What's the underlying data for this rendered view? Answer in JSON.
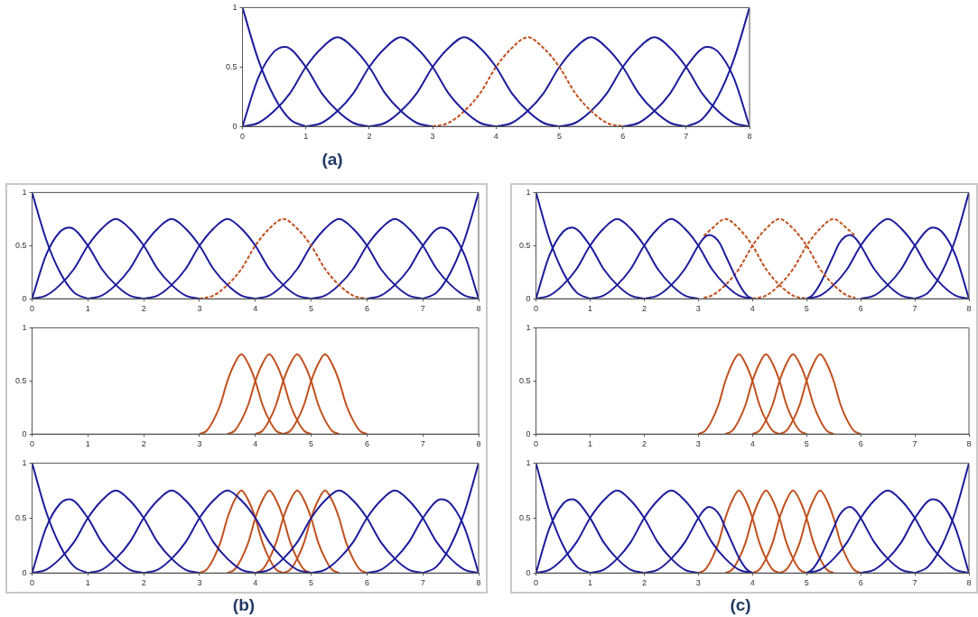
{
  "chart_data": [
    {
      "type": "line",
      "title": "(a)",
      "xlim": [
        0,
        8
      ],
      "ylim": [
        0,
        1
      ],
      "xticks": [
        0,
        1,
        2,
        3,
        4,
        5,
        6,
        7,
        8
      ],
      "yticks": [
        0,
        0.5,
        1
      ],
      "grid": false,
      "legend": false,
      "marker": "none",
      "series": [
        {
          "color": "#1c1c9c",
          "x": [
            0,
            0.25,
            0.5,
            0.75,
            1
          ],
          "values": [
            1,
            0.56,
            0.25,
            0.06,
            0
          ]
        },
        {
          "color": "#1c1c9c",
          "x": [
            0,
            0.25,
            0.5,
            0.67,
            1,
            1.25,
            1.5,
            1.75,
            2
          ],
          "values": [
            0,
            0.41,
            0.63,
            0.67,
            0.5,
            0.28,
            0.13,
            0.03,
            0
          ]
        },
        {
          "color": "#1c1c9c",
          "x": [
            0,
            0.25,
            0.5,
            0.75,
            1,
            1.25,
            1.5,
            1.75,
            2,
            2.25,
            2.5,
            2.75,
            3
          ],
          "values": [
            0,
            0.03,
            0.13,
            0.28,
            0.5,
            0.66,
            0.75,
            0.66,
            0.5,
            0.28,
            0.13,
            0.03,
            0
          ]
        },
        {
          "color": "#1c1c9c",
          "x": [
            1,
            1.25,
            1.5,
            1.75,
            2,
            2.25,
            2.5,
            2.75,
            3,
            3.25,
            3.5,
            3.75,
            4
          ],
          "values": [
            0,
            0.03,
            0.13,
            0.28,
            0.5,
            0.66,
            0.75,
            0.66,
            0.5,
            0.28,
            0.13,
            0.03,
            0
          ]
        },
        {
          "color": "#1c1c9c",
          "x": [
            2,
            2.25,
            2.5,
            2.75,
            3,
            3.25,
            3.5,
            3.75,
            4,
            4.25,
            4.5,
            4.75,
            5
          ],
          "values": [
            0,
            0.03,
            0.13,
            0.28,
            0.5,
            0.66,
            0.75,
            0.66,
            0.5,
            0.28,
            0.13,
            0.03,
            0
          ]
        },
        {
          "color": "#c0501e",
          "line_style": "dashed",
          "x": [
            3,
            3.25,
            3.5,
            3.75,
            4,
            4.25,
            4.5,
            4.75,
            5,
            5.25,
            5.5,
            5.75,
            6
          ],
          "values": [
            0,
            0.03,
            0.13,
            0.28,
            0.5,
            0.66,
            0.75,
            0.66,
            0.5,
            0.28,
            0.13,
            0.03,
            0
          ]
        },
        {
          "color": "#1c1c9c",
          "x": [
            4,
            4.25,
            4.5,
            4.75,
            5,
            5.25,
            5.5,
            5.75,
            6,
            6.25,
            6.5,
            6.75,
            7
          ],
          "values": [
            0,
            0.03,
            0.13,
            0.28,
            0.5,
            0.66,
            0.75,
            0.66,
            0.5,
            0.28,
            0.13,
            0.03,
            0
          ]
        },
        {
          "color": "#1c1c9c",
          "x": [
            5,
            5.25,
            5.5,
            5.75,
            6,
            6.25,
            6.5,
            6.75,
            7,
            7.25,
            7.5,
            7.75,
            8
          ],
          "values": [
            0,
            0.03,
            0.13,
            0.28,
            0.5,
            0.66,
            0.75,
            0.66,
            0.5,
            0.28,
            0.13,
            0.03,
            0
          ]
        },
        {
          "color": "#1c1c9c",
          "x": [
            6,
            6.25,
            6.5,
            6.75,
            7,
            7.33,
            7.5,
            7.75,
            8
          ],
          "values": [
            0,
            0.03,
            0.13,
            0.28,
            0.5,
            0.67,
            0.63,
            0.41,
            0
          ]
        },
        {
          "color": "#1c1c9c",
          "x": [
            7,
            7.25,
            7.5,
            7.75,
            8
          ],
          "values": [
            0,
            0.06,
            0.25,
            0.56,
            1
          ]
        }
      ]
    },
    {
      "type": "line",
      "xlim": [
        0,
        8
      ],
      "ylim": [
        0,
        1
      ],
      "xticks": [
        0,
        1,
        2,
        3,
        4,
        5,
        6,
        7,
        8
      ],
      "yticks": [
        0,
        0.5,
        1
      ],
      "grid": false,
      "legend": false,
      "marker": "none",
      "series": [
        {
          "color": "#1c1c9c",
          "x": [
            0,
            0.25,
            0.5,
            0.75,
            1
          ],
          "values": [
            1,
            0.56,
            0.25,
            0.06,
            0
          ]
        },
        {
          "color": "#1c1c9c",
          "x": [
            0,
            0.25,
            0.5,
            0.67,
            1,
            1.25,
            1.5,
            1.75,
            2
          ],
          "values": [
            0,
            0.41,
            0.63,
            0.67,
            0.5,
            0.28,
            0.13,
            0.03,
            0
          ]
        },
        {
          "color": "#1c1c9c",
          "x": [
            0,
            0.25,
            0.5,
            0.75,
            1,
            1.25,
            1.5,
            1.75,
            2,
            2.25,
            2.5,
            2.75,
            3
          ],
          "values": [
            0,
            0.03,
            0.13,
            0.28,
            0.5,
            0.66,
            0.75,
            0.66,
            0.5,
            0.28,
            0.13,
            0.03,
            0
          ]
        },
        {
          "color": "#1c1c9c",
          "x": [
            1,
            1.25,
            1.5,
            1.75,
            2,
            2.25,
            2.5,
            2.75,
            3,
            3.25,
            3.5,
            3.75,
            4
          ],
          "values": [
            0,
            0.03,
            0.13,
            0.28,
            0.5,
            0.66,
            0.75,
            0.66,
            0.5,
            0.28,
            0.13,
            0.03,
            0
          ]
        },
        {
          "color": "#1c1c9c",
          "x": [
            2,
            2.25,
            2.5,
            2.75,
            3,
            3.25,
            3.5,
            3.75,
            4,
            4.25,
            4.5,
            4.75,
            5
          ],
          "values": [
            0,
            0.03,
            0.13,
            0.28,
            0.5,
            0.66,
            0.75,
            0.66,
            0.5,
            0.28,
            0.13,
            0.03,
            0
          ]
        },
        {
          "color": "#c0501e",
          "line_style": "dashed",
          "x": [
            3,
            3.25,
            3.5,
            3.75,
            4,
            4.25,
            4.5,
            4.75,
            5,
            5.25,
            5.5,
            5.75,
            6
          ],
          "values": [
            0,
            0.03,
            0.13,
            0.28,
            0.5,
            0.66,
            0.75,
            0.66,
            0.5,
            0.28,
            0.13,
            0.03,
            0
          ]
        },
        {
          "color": "#1c1c9c",
          "x": [
            4,
            4.25,
            4.5,
            4.75,
            5,
            5.25,
            5.5,
            5.75,
            6,
            6.25,
            6.5,
            6.75,
            7
          ],
          "values": [
            0,
            0.03,
            0.13,
            0.28,
            0.5,
            0.66,
            0.75,
            0.66,
            0.5,
            0.28,
            0.13,
            0.03,
            0
          ]
        },
        {
          "color": "#1c1c9c",
          "x": [
            5,
            5.25,
            5.5,
            5.75,
            6,
            6.25,
            6.5,
            6.75,
            7,
            7.25,
            7.5,
            7.75,
            8
          ],
          "values": [
            0,
            0.03,
            0.13,
            0.28,
            0.5,
            0.66,
            0.75,
            0.66,
            0.5,
            0.28,
            0.13,
            0.03,
            0
          ]
        },
        {
          "color": "#1c1c9c",
          "x": [
            6,
            6.25,
            6.5,
            6.75,
            7,
            7.33,
            7.5,
            7.75,
            8
          ],
          "values": [
            0,
            0.03,
            0.13,
            0.28,
            0.5,
            0.67,
            0.63,
            0.41,
            0
          ]
        },
        {
          "color": "#1c1c9c",
          "x": [
            7,
            7.25,
            7.5,
            7.75,
            8
          ],
          "values": [
            0,
            0.06,
            0.25,
            0.56,
            1
          ]
        }
      ]
    },
    {
      "type": "line",
      "xlim": [
        0,
        8
      ],
      "ylim": [
        0,
        1
      ],
      "xticks": [
        0,
        1,
        2,
        3,
        4,
        5,
        6,
        7,
        8
      ],
      "yticks": [
        0,
        0.5,
        1
      ],
      "grid": false,
      "legend": false,
      "marker": "none",
      "series": [
        {
          "color": "#c0501e",
          "x": [
            3,
            3.125,
            3.25,
            3.375,
            3.5,
            3.625,
            3.75,
            3.875,
            4,
            4.125,
            4.25,
            4.375,
            4.5
          ],
          "values": [
            0,
            0.03,
            0.13,
            0.28,
            0.5,
            0.66,
            0.75,
            0.66,
            0.5,
            0.28,
            0.13,
            0.03,
            0
          ]
        },
        {
          "color": "#c0501e",
          "x": [
            3.5,
            3.625,
            3.75,
            3.875,
            4,
            4.125,
            4.25,
            4.375,
            4.5,
            4.625,
            4.75,
            4.875,
            5
          ],
          "values": [
            0,
            0.03,
            0.13,
            0.28,
            0.5,
            0.66,
            0.75,
            0.66,
            0.5,
            0.28,
            0.13,
            0.03,
            0
          ]
        },
        {
          "color": "#c0501e",
          "x": [
            4,
            4.125,
            4.25,
            4.375,
            4.5,
            4.625,
            4.75,
            4.875,
            5,
            5.125,
            5.25,
            5.375,
            5.5
          ],
          "values": [
            0,
            0.03,
            0.13,
            0.28,
            0.5,
            0.66,
            0.75,
            0.66,
            0.5,
            0.28,
            0.13,
            0.03,
            0
          ]
        },
        {
          "color": "#c0501e",
          "x": [
            4.5,
            4.625,
            4.75,
            4.875,
            5,
            5.125,
            5.25,
            5.375,
            5.5,
            5.625,
            5.75,
            5.875,
            6
          ],
          "values": [
            0,
            0.03,
            0.13,
            0.28,
            0.5,
            0.66,
            0.75,
            0.66,
            0.5,
            0.28,
            0.13,
            0.03,
            0
          ]
        }
      ]
    },
    {
      "type": "line",
      "title": "(b)",
      "xlim": [
        0,
        8
      ],
      "ylim": [
        0,
        1
      ],
      "xticks": [
        0,
        1,
        2,
        3,
        4,
        5,
        6,
        7,
        8
      ],
      "yticks": [
        0,
        0.5,
        1
      ],
      "grid": false,
      "legend": false,
      "marker": "none",
      "series": [
        {
          "color": "#1c1c9c",
          "x": [
            0,
            0.25,
            0.5,
            0.75,
            1
          ],
          "values": [
            1,
            0.56,
            0.25,
            0.06,
            0
          ]
        },
        {
          "color": "#1c1c9c",
          "x": [
            0,
            0.25,
            0.5,
            0.67,
            1,
            1.25,
            1.5,
            1.75,
            2
          ],
          "values": [
            0,
            0.41,
            0.63,
            0.67,
            0.5,
            0.28,
            0.13,
            0.03,
            0
          ]
        },
        {
          "color": "#1c1c9c",
          "x": [
            0,
            0.25,
            0.5,
            0.75,
            1,
            1.25,
            1.5,
            1.75,
            2,
            2.25,
            2.5,
            2.75,
            3
          ],
          "values": [
            0,
            0.03,
            0.13,
            0.28,
            0.5,
            0.66,
            0.75,
            0.66,
            0.5,
            0.28,
            0.13,
            0.03,
            0
          ]
        },
        {
          "color": "#1c1c9c",
          "x": [
            1,
            1.25,
            1.5,
            1.75,
            2,
            2.25,
            2.5,
            2.75,
            3,
            3.25,
            3.5,
            3.75,
            4
          ],
          "values": [
            0,
            0.03,
            0.13,
            0.28,
            0.5,
            0.66,
            0.75,
            0.66,
            0.5,
            0.28,
            0.13,
            0.03,
            0
          ]
        },
        {
          "color": "#1c1c9c",
          "x": [
            2,
            2.25,
            2.5,
            2.75,
            3,
            3.25,
            3.5,
            3.75,
            4,
            4.25,
            4.5,
            4.75,
            5
          ],
          "values": [
            0,
            0.03,
            0.13,
            0.28,
            0.5,
            0.66,
            0.75,
            0.66,
            0.5,
            0.28,
            0.13,
            0.03,
            0
          ]
        },
        {
          "color": "#1c1c9c",
          "x": [
            4,
            4.25,
            4.5,
            4.75,
            5,
            5.25,
            5.5,
            5.75,
            6,
            6.25,
            6.5,
            6.75,
            7
          ],
          "values": [
            0,
            0.03,
            0.13,
            0.28,
            0.5,
            0.66,
            0.75,
            0.66,
            0.5,
            0.28,
            0.13,
            0.03,
            0
          ]
        },
        {
          "color": "#1c1c9c",
          "x": [
            5,
            5.25,
            5.5,
            5.75,
            6,
            6.25,
            6.5,
            6.75,
            7,
            7.25,
            7.5,
            7.75,
            8
          ],
          "values": [
            0,
            0.03,
            0.13,
            0.28,
            0.5,
            0.66,
            0.75,
            0.66,
            0.5,
            0.28,
            0.13,
            0.03,
            0
          ]
        },
        {
          "color": "#1c1c9c",
          "x": [
            6,
            6.25,
            6.5,
            6.75,
            7,
            7.33,
            7.5,
            7.75,
            8
          ],
          "values": [
            0,
            0.03,
            0.13,
            0.28,
            0.5,
            0.67,
            0.63,
            0.41,
            0
          ]
        },
        {
          "color": "#1c1c9c",
          "x": [
            7,
            7.25,
            7.5,
            7.75,
            8
          ],
          "values": [
            0,
            0.06,
            0.25,
            0.56,
            1
          ]
        },
        {
          "color": "#c0501e",
          "x": [
            3,
            3.125,
            3.25,
            3.375,
            3.5,
            3.625,
            3.75,
            3.875,
            4,
            4.125,
            4.25,
            4.375,
            4.5
          ],
          "values": [
            0,
            0.03,
            0.13,
            0.28,
            0.5,
            0.66,
            0.75,
            0.66,
            0.5,
            0.28,
            0.13,
            0.03,
            0
          ]
        },
        {
          "color": "#c0501e",
          "x": [
            3.5,
            3.625,
            3.75,
            3.875,
            4,
            4.125,
            4.25,
            4.375,
            4.5,
            4.625,
            4.75,
            4.875,
            5
          ],
          "values": [
            0,
            0.03,
            0.13,
            0.28,
            0.5,
            0.66,
            0.75,
            0.66,
            0.5,
            0.28,
            0.13,
            0.03,
            0
          ]
        },
        {
          "color": "#c0501e",
          "x": [
            4,
            4.125,
            4.25,
            4.375,
            4.5,
            4.625,
            4.75,
            4.875,
            5,
            5.125,
            5.25,
            5.375,
            5.5
          ],
          "values": [
            0,
            0.03,
            0.13,
            0.28,
            0.5,
            0.66,
            0.75,
            0.66,
            0.5,
            0.28,
            0.13,
            0.03,
            0
          ]
        },
        {
          "color": "#c0501e",
          "x": [
            4.5,
            4.625,
            4.75,
            4.875,
            5,
            5.125,
            5.25,
            5.375,
            5.5,
            5.625,
            5.75,
            5.875,
            6
          ],
          "values": [
            0,
            0.03,
            0.13,
            0.28,
            0.5,
            0.66,
            0.75,
            0.66,
            0.5,
            0.28,
            0.13,
            0.03,
            0
          ]
        }
      ]
    },
    {
      "type": "line",
      "xlim": [
        0,
        8
      ],
      "ylim": [
        0,
        1
      ],
      "xticks": [
        0,
        1,
        2,
        3,
        4,
        5,
        6,
        7,
        8
      ],
      "yticks": [
        0,
        0.5,
        1
      ],
      "grid": false,
      "legend": false,
      "marker": "none",
      "series": [
        {
          "color": "#1c1c9c",
          "x": [
            0,
            0.25,
            0.5,
            0.75,
            1
          ],
          "values": [
            1,
            0.56,
            0.25,
            0.06,
            0
          ]
        },
        {
          "color": "#1c1c9c",
          "x": [
            0,
            0.25,
            0.5,
            0.67,
            1,
            1.25,
            1.5,
            1.75,
            2
          ],
          "values": [
            0,
            0.41,
            0.63,
            0.67,
            0.5,
            0.28,
            0.13,
            0.03,
            0
          ]
        },
        {
          "color": "#1c1c9c",
          "x": [
            0,
            0.25,
            0.5,
            0.75,
            1,
            1.25,
            1.5,
            1.75,
            2,
            2.25,
            2.5,
            2.75,
            3
          ],
          "values": [
            0,
            0.03,
            0.13,
            0.28,
            0.5,
            0.66,
            0.75,
            0.66,
            0.5,
            0.28,
            0.13,
            0.03,
            0
          ]
        },
        {
          "color": "#1c1c9c",
          "x": [
            1,
            1.25,
            1.5,
            1.75,
            2,
            2.25,
            2.5,
            2.75,
            3,
            3.25,
            3.5,
            3.75,
            4
          ],
          "values": [
            0,
            0.03,
            0.13,
            0.28,
            0.5,
            0.66,
            0.75,
            0.66,
            0.5,
            0.28,
            0.13,
            0.03,
            0
          ]
        },
        {
          "color": "#1c1c9c",
          "x": [
            2,
            2.25,
            2.5,
            2.75,
            3,
            3.1,
            3.2,
            3.3,
            3.4,
            3.5,
            3.6,
            3.75,
            3.9,
            4
          ],
          "values": [
            0,
            0.03,
            0.13,
            0.28,
            0.5,
            0.57,
            0.6,
            0.58,
            0.52,
            0.41,
            0.3,
            0.14,
            0.03,
            0
          ]
        },
        {
          "color": "#c0501e",
          "line_style": "dashed",
          "x": [
            3.1,
            3.25,
            3.5,
            3.75,
            4,
            4.25,
            4.5,
            4.75,
            5
          ],
          "values": [
            0.59,
            0.66,
            0.75,
            0.66,
            0.5,
            0.28,
            0.13,
            0.03,
            0
          ]
        },
        {
          "color": "#c0501e",
          "line_style": "dashed",
          "x": [
            3.1,
            3.25,
            3.5,
            3.75,
            4,
            4.25,
            4.5,
            4.75,
            5,
            5.25,
            5.5,
            5.75,
            5.9
          ],
          "values": [
            0.01,
            0.03,
            0.13,
            0.28,
            0.5,
            0.66,
            0.75,
            0.66,
            0.5,
            0.28,
            0.13,
            0.03,
            0.01
          ]
        },
        {
          "color": "#c0501e",
          "line_style": "dashed",
          "x": [
            4,
            4.25,
            4.5,
            4.75,
            5,
            5.25,
            5.5,
            5.75,
            5.9
          ],
          "values": [
            0,
            0.03,
            0.13,
            0.28,
            0.5,
            0.66,
            0.75,
            0.66,
            0.59
          ]
        },
        {
          "color": "#1c1c9c",
          "x": [
            5,
            5.1,
            5.25,
            5.4,
            5.5,
            5.6,
            5.7,
            5.8,
            5.9,
            6,
            6.25,
            6.5,
            6.75,
            7
          ],
          "values": [
            0,
            0.03,
            0.14,
            0.3,
            0.41,
            0.52,
            0.58,
            0.6,
            0.57,
            0.5,
            0.28,
            0.13,
            0.03,
            0
          ]
        },
        {
          "color": "#1c1c9c",
          "x": [
            5,
            5.25,
            5.5,
            5.75,
            6,
            6.25,
            6.5,
            6.75,
            7,
            7.25,
            7.5,
            7.75,
            8
          ],
          "values": [
            0,
            0.03,
            0.13,
            0.28,
            0.5,
            0.66,
            0.75,
            0.66,
            0.5,
            0.28,
            0.13,
            0.03,
            0
          ]
        },
        {
          "color": "#1c1c9c",
          "x": [
            6,
            6.25,
            6.5,
            6.75,
            7,
            7.33,
            7.5,
            7.75,
            8
          ],
          "values": [
            0,
            0.03,
            0.13,
            0.28,
            0.5,
            0.67,
            0.63,
            0.41,
            0
          ]
        },
        {
          "color": "#1c1c9c",
          "x": [
            7,
            7.25,
            7.5,
            7.75,
            8
          ],
          "values": [
            0,
            0.06,
            0.25,
            0.56,
            1
          ]
        }
      ]
    },
    {
      "type": "line",
      "xlim": [
        0,
        8
      ],
      "ylim": [
        0,
        1
      ],
      "xticks": [
        0,
        1,
        2,
        3,
        4,
        5,
        6,
        7,
        8
      ],
      "yticks": [
        0,
        0.5,
        1
      ],
      "grid": false,
      "legend": false,
      "marker": "none",
      "series": [
        {
          "color": "#c0501e",
          "x": [
            3,
            3.125,
            3.25,
            3.375,
            3.5,
            3.625,
            3.75,
            3.875,
            4,
            4.125,
            4.25,
            4.375,
            4.5
          ],
          "values": [
            0,
            0.03,
            0.13,
            0.28,
            0.5,
            0.66,
            0.75,
            0.66,
            0.5,
            0.28,
            0.13,
            0.03,
            0
          ]
        },
        {
          "color": "#c0501e",
          "x": [
            3.5,
            3.625,
            3.75,
            3.875,
            4,
            4.125,
            4.25,
            4.375,
            4.5,
            4.625,
            4.75,
            4.875,
            5
          ],
          "values": [
            0,
            0.03,
            0.13,
            0.28,
            0.5,
            0.66,
            0.75,
            0.66,
            0.5,
            0.28,
            0.13,
            0.03,
            0
          ]
        },
        {
          "color": "#c0501e",
          "x": [
            4,
            4.125,
            4.25,
            4.375,
            4.5,
            4.625,
            4.75,
            4.875,
            5,
            5.125,
            5.25,
            5.375,
            5.5
          ],
          "values": [
            0,
            0.03,
            0.13,
            0.28,
            0.5,
            0.66,
            0.75,
            0.66,
            0.5,
            0.28,
            0.13,
            0.03,
            0
          ]
        },
        {
          "color": "#c0501e",
          "x": [
            4.5,
            4.625,
            4.75,
            4.875,
            5,
            5.125,
            5.25,
            5.375,
            5.5,
            5.625,
            5.75,
            5.875,
            6
          ],
          "values": [
            0,
            0.03,
            0.13,
            0.28,
            0.5,
            0.66,
            0.75,
            0.66,
            0.5,
            0.28,
            0.13,
            0.03,
            0
          ]
        }
      ]
    },
    {
      "type": "line",
      "title": "(c)",
      "xlim": [
        0,
        8
      ],
      "ylim": [
        0,
        1
      ],
      "xticks": [
        0,
        1,
        2,
        3,
        4,
        5,
        6,
        7,
        8
      ],
      "yticks": [
        0,
        0.5,
        1
      ],
      "grid": false,
      "legend": false,
      "marker": "none",
      "series": [
        {
          "color": "#1c1c9c",
          "x": [
            0,
            0.25,
            0.5,
            0.75,
            1
          ],
          "values": [
            1,
            0.56,
            0.25,
            0.06,
            0
          ]
        },
        {
          "color": "#1c1c9c",
          "x": [
            0,
            0.25,
            0.5,
            0.67,
            1,
            1.25,
            1.5,
            1.75,
            2
          ],
          "values": [
            0,
            0.41,
            0.63,
            0.67,
            0.5,
            0.28,
            0.13,
            0.03,
            0
          ]
        },
        {
          "color": "#1c1c9c",
          "x": [
            0,
            0.25,
            0.5,
            0.75,
            1,
            1.25,
            1.5,
            1.75,
            2,
            2.25,
            2.5,
            2.75,
            3
          ],
          "values": [
            0,
            0.03,
            0.13,
            0.28,
            0.5,
            0.66,
            0.75,
            0.66,
            0.5,
            0.28,
            0.13,
            0.03,
            0
          ]
        },
        {
          "color": "#1c1c9c",
          "x": [
            1,
            1.25,
            1.5,
            1.75,
            2,
            2.25,
            2.5,
            2.75,
            3,
            3.25,
            3.5,
            3.75,
            4
          ],
          "values": [
            0,
            0.03,
            0.13,
            0.28,
            0.5,
            0.66,
            0.75,
            0.66,
            0.5,
            0.28,
            0.13,
            0.03,
            0
          ]
        },
        {
          "color": "#1c1c9c",
          "x": [
            2,
            2.25,
            2.5,
            2.75,
            3,
            3.1,
            3.2,
            3.3,
            3.4,
            3.5,
            3.6,
            3.75,
            3.9,
            4
          ],
          "values": [
            0,
            0.03,
            0.13,
            0.28,
            0.5,
            0.57,
            0.6,
            0.58,
            0.52,
            0.41,
            0.3,
            0.14,
            0.03,
            0
          ]
        },
        {
          "color": "#1c1c9c",
          "x": [
            5,
            5.1,
            5.25,
            5.4,
            5.5,
            5.6,
            5.7,
            5.8,
            5.9,
            6,
            6.25,
            6.5,
            6.75,
            7
          ],
          "values": [
            0,
            0.03,
            0.14,
            0.3,
            0.41,
            0.52,
            0.58,
            0.6,
            0.57,
            0.5,
            0.28,
            0.13,
            0.03,
            0
          ]
        },
        {
          "color": "#1c1c9c",
          "x": [
            5,
            5.25,
            5.5,
            5.75,
            6,
            6.25,
            6.5,
            6.75,
            7,
            7.25,
            7.5,
            7.75,
            8
          ],
          "values": [
            0,
            0.03,
            0.13,
            0.28,
            0.5,
            0.66,
            0.75,
            0.66,
            0.5,
            0.28,
            0.13,
            0.03,
            0
          ]
        },
        {
          "color": "#1c1c9c",
          "x": [
            6,
            6.25,
            6.5,
            6.75,
            7,
            7.33,
            7.5,
            7.75,
            8
          ],
          "values": [
            0,
            0.03,
            0.13,
            0.28,
            0.5,
            0.67,
            0.63,
            0.41,
            0
          ]
        },
        {
          "color": "#1c1c9c",
          "x": [
            7,
            7.25,
            7.5,
            7.75,
            8
          ],
          "values": [
            0,
            0.06,
            0.25,
            0.56,
            1
          ]
        },
        {
          "color": "#c0501e",
          "x": [
            3,
            3.125,
            3.25,
            3.375,
            3.5,
            3.625,
            3.75,
            3.875,
            4,
            4.125,
            4.25,
            4.375,
            4.5
          ],
          "values": [
            0,
            0.03,
            0.13,
            0.28,
            0.5,
            0.66,
            0.75,
            0.66,
            0.5,
            0.28,
            0.13,
            0.03,
            0
          ]
        },
        {
          "color": "#c0501e",
          "x": [
            3.5,
            3.625,
            3.75,
            3.875,
            4,
            4.125,
            4.25,
            4.375,
            4.5,
            4.625,
            4.75,
            4.875,
            5
          ],
          "values": [
            0,
            0.03,
            0.13,
            0.28,
            0.5,
            0.66,
            0.75,
            0.66,
            0.5,
            0.28,
            0.13,
            0.03,
            0
          ]
        },
        {
          "color": "#c0501e",
          "x": [
            4,
            4.125,
            4.25,
            4.375,
            4.5,
            4.625,
            4.75,
            4.875,
            5,
            5.125,
            5.25,
            5.375,
            5.5
          ],
          "values": [
            0,
            0.03,
            0.13,
            0.28,
            0.5,
            0.66,
            0.75,
            0.66,
            0.5,
            0.28,
            0.13,
            0.03,
            0
          ]
        },
        {
          "color": "#c0501e",
          "x": [
            4.5,
            4.625,
            4.75,
            4.875,
            5,
            5.125,
            5.25,
            5.375,
            5.5,
            5.625,
            5.75,
            5.875,
            6
          ],
          "values": [
            0,
            0.03,
            0.13,
            0.28,
            0.5,
            0.66,
            0.75,
            0.66,
            0.5,
            0.28,
            0.13,
            0.03,
            0
          ]
        }
      ]
    }
  ]
}
